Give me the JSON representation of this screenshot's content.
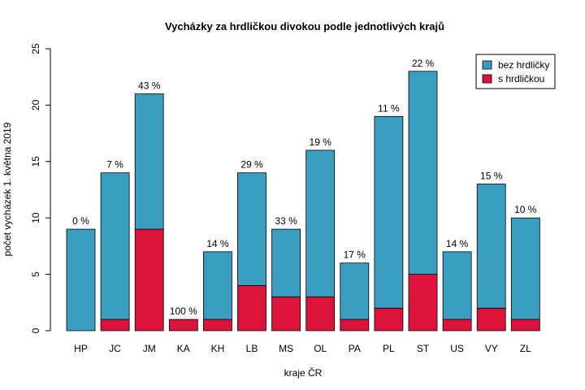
{
  "chart_data": {
    "type": "bar",
    "stacked": true,
    "title": "Vycházky za hrdličkou divokou podle jednotlivých krajů",
    "xlabel": "kraje ČR",
    "ylabel": "počet vycházek 1. května 2019",
    "ylim": [
      0,
      25
    ],
    "yticks": [
      "0",
      "5",
      "10",
      "15",
      "20",
      "25"
    ],
    "categories": [
      "HP",
      "JC",
      "JM",
      "KA",
      "KH",
      "LB",
      "MS",
      "OL",
      "PA",
      "PL",
      "ST",
      "US",
      "VY",
      "ZL"
    ],
    "series": [
      {
        "name": "s hrdličkou",
        "color": "#DC143C",
        "values": [
          0,
          1,
          9,
          1,
          1,
          4,
          3,
          3,
          1,
          2,
          5,
          1,
          2,
          1
        ]
      },
      {
        "name": "bez hrdličky",
        "color": "#3A9EC0",
        "values": [
          9,
          13,
          12,
          0,
          6,
          10,
          6,
          13,
          5,
          17,
          18,
          6,
          11,
          9
        ]
      }
    ],
    "bar_labels": [
      "0 %",
      "7 %",
      "43 %",
      "100 %",
      "14 %",
      "29 %",
      "33 %",
      "19 %",
      "17 %",
      "11 %",
      "22 %",
      "14 %",
      "15 %",
      "10 %"
    ],
    "legend_position": "top-right",
    "legend_order": [
      "bez hrdličky",
      "s hrdličkou"
    ],
    "grid": false
  }
}
